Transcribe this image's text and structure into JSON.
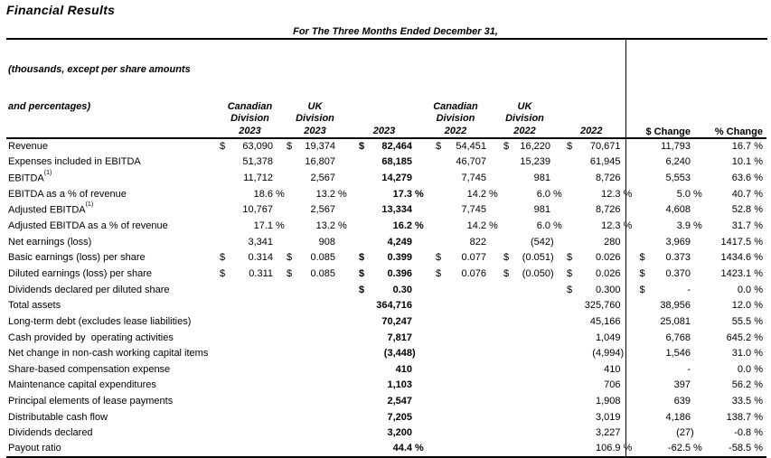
{
  "title": "Financial Results",
  "table": {
    "period_header": "For The Three Months Ended December 31,",
    "row_label_header": [
      "(thousands, except per share amounts",
      "and percentages)"
    ],
    "column_groups": [
      {
        "line1": "Canadian",
        "line2": "Division",
        "year": "2023"
      },
      {
        "line1": "UK",
        "line2": "Division",
        "year": "2023"
      },
      {
        "line1": "",
        "line2": "",
        "year": "2023"
      },
      {
        "line1": "Canadian",
        "line2": "Division",
        "year": "2022"
      },
      {
        "line1": "UK",
        "line2": "Division",
        "year": "2022"
      },
      {
        "line1": "",
        "line2": "",
        "year": "2022"
      }
    ],
    "change_headers": {
      "dollar": "$ Change",
      "percent": "% Change"
    },
    "rows": [
      {
        "label": "Revenue",
        "cells": [
          [
            "$",
            "63,090"
          ],
          [
            "$",
            "19,374"
          ],
          [
            "$",
            "82,464"
          ],
          [
            "$",
            "54,451"
          ],
          [
            "$",
            "16,220"
          ],
          [
            "$",
            "70,671"
          ],
          [
            "",
            "11,793"
          ]
        ],
        "pct": "16.7 %"
      },
      {
        "label": "Expenses included in EBITDA",
        "cells": [
          [
            "",
            "51,378"
          ],
          [
            "",
            "16,807"
          ],
          [
            "",
            "68,185"
          ],
          [
            "",
            "46,707"
          ],
          [
            "",
            "15,239"
          ],
          [
            "",
            "61,945"
          ],
          [
            "",
            "6,240"
          ]
        ],
        "pct": "10.1 %"
      },
      {
        "label": "EBITDA",
        "sup": "(1)",
        "cells": [
          [
            "",
            "11,712"
          ],
          [
            "",
            "2,567"
          ],
          [
            "",
            "14,279"
          ],
          [
            "",
            "7,745"
          ],
          [
            "",
            "981"
          ],
          [
            "",
            "8,726"
          ],
          [
            "",
            "5,553"
          ]
        ],
        "pct": "63.6 %"
      },
      {
        "label": "EBITDA as a % of revenue",
        "cells": [
          [
            "",
            "18.6 %"
          ],
          [
            "",
            "13.2 %"
          ],
          [
            "",
            "17.3 %"
          ],
          [
            "",
            "14.2 %"
          ],
          [
            "",
            "6.0 %"
          ],
          [
            "",
            "12.3 %"
          ],
          [
            "",
            "5.0 %"
          ]
        ],
        "pct": "40.7 %"
      },
      {
        "label": "Adjusted EBITDA",
        "sup": "(1)",
        "cells": [
          [
            "",
            "10,767"
          ],
          [
            "",
            "2,567"
          ],
          [
            "",
            "13,334"
          ],
          [
            "",
            "7,745"
          ],
          [
            "",
            "981"
          ],
          [
            "",
            "8,726"
          ],
          [
            "",
            "4,608"
          ]
        ],
        "pct": "52.8 %"
      },
      {
        "label": "Adjusted EBITDA as a % of revenue",
        "cells": [
          [
            "",
            "17.1 %"
          ],
          [
            "",
            "13.2 %"
          ],
          [
            "",
            "16.2 %"
          ],
          [
            "",
            "14.2 %"
          ],
          [
            "",
            "6.0 %"
          ],
          [
            "",
            "12.3 %"
          ],
          [
            "",
            "3.9 %"
          ]
        ],
        "pct": "31.7 %"
      },
      {
        "label": "Net earnings (loss)",
        "cells": [
          [
            "",
            "3,341"
          ],
          [
            "",
            "908"
          ],
          [
            "",
            "4,249"
          ],
          [
            "",
            "822"
          ],
          [
            "",
            "(542)"
          ],
          [
            "",
            "280"
          ],
          [
            "",
            "3,969"
          ]
        ],
        "pct": "1417.5 %"
      },
      {
        "label": "Basic earnings (loss) per share",
        "cells": [
          [
            "$",
            "0.314"
          ],
          [
            "$",
            "0.085"
          ],
          [
            "$",
            "0.399"
          ],
          [
            "$",
            "0.077"
          ],
          [
            "$",
            "(0.051)"
          ],
          [
            "$",
            "0.026"
          ],
          [
            "$",
            "0.373"
          ]
        ],
        "pct": "1434.6 %"
      },
      {
        "label": "Diluted earnings (loss) per share",
        "cells": [
          [
            "$",
            "0.311"
          ],
          [
            "$",
            "0.085"
          ],
          [
            "$",
            "0.396"
          ],
          [
            "$",
            "0.076"
          ],
          [
            "$",
            "(0.050)"
          ],
          [
            "$",
            "0.026"
          ],
          [
            "$",
            "0.370"
          ]
        ],
        "pct": "1423.1 %"
      },
      {
        "label": "Dividends declared per diluted share",
        "cells": [
          [
            "",
            ""
          ],
          [
            "",
            ""
          ],
          [
            "$",
            "0.30"
          ],
          [
            "",
            ""
          ],
          [
            "",
            ""
          ],
          [
            "$",
            "0.300"
          ],
          [
            "$",
            "-"
          ]
        ],
        "pct": "0.0 %"
      },
      {
        "label": "Total assets",
        "cells": [
          [
            "",
            ""
          ],
          [
            "",
            ""
          ],
          [
            "",
            "364,716"
          ],
          [
            "",
            ""
          ],
          [
            "",
            ""
          ],
          [
            "",
            "325,760"
          ],
          [
            "",
            "38,956"
          ]
        ],
        "pct": "12.0 %"
      },
      {
        "label": "Long-term debt (excludes lease liabilities)",
        "cells": [
          [
            "",
            ""
          ],
          [
            "",
            ""
          ],
          [
            "",
            "70,247"
          ],
          [
            "",
            ""
          ],
          [
            "",
            ""
          ],
          [
            "",
            "45,166"
          ],
          [
            "",
            "25,081"
          ]
        ],
        "pct": "55.5 %"
      },
      {
        "label": "Cash provided by  operating activities",
        "cells": [
          [
            "",
            ""
          ],
          [
            "",
            ""
          ],
          [
            "",
            "7,817"
          ],
          [
            "",
            ""
          ],
          [
            "",
            ""
          ],
          [
            "",
            "1,049"
          ],
          [
            "",
            "6,768"
          ]
        ],
        "pct": "645.2 %"
      },
      {
        "label": "Net change in non-cash working capital items",
        "cells": [
          [
            "",
            ""
          ],
          [
            "",
            ""
          ],
          [
            "",
            "(3,448)"
          ],
          [
            "",
            ""
          ],
          [
            "",
            ""
          ],
          [
            "",
            "(4,994)"
          ],
          [
            "",
            "1,546"
          ]
        ],
        "pct": "31.0 %"
      },
      {
        "label": "Share-based compensation expense",
        "cells": [
          [
            "",
            ""
          ],
          [
            "",
            ""
          ],
          [
            "",
            "410"
          ],
          [
            "",
            ""
          ],
          [
            "",
            ""
          ],
          [
            "",
            "410"
          ],
          [
            "",
            "-"
          ]
        ],
        "pct": "0.0 %"
      },
      {
        "label": "Maintenance capital expenditures",
        "cells": [
          [
            "",
            ""
          ],
          [
            "",
            ""
          ],
          [
            "",
            "1,103"
          ],
          [
            "",
            ""
          ],
          [
            "",
            ""
          ],
          [
            "",
            "706"
          ],
          [
            "",
            "397"
          ]
        ],
        "pct": "56.2 %"
      },
      {
        "label": "Principal elements of lease payments",
        "cells": [
          [
            "",
            ""
          ],
          [
            "",
            ""
          ],
          [
            "",
            "2,547"
          ],
          [
            "",
            ""
          ],
          [
            "",
            ""
          ],
          [
            "",
            "1,908"
          ],
          [
            "",
            "639"
          ]
        ],
        "pct": "33.5 %"
      },
      {
        "label": "Distributable cash flow",
        "cells": [
          [
            "",
            ""
          ],
          [
            "",
            ""
          ],
          [
            "",
            "7,205"
          ],
          [
            "",
            ""
          ],
          [
            "",
            ""
          ],
          [
            "",
            "3,019"
          ],
          [
            "",
            "4,186"
          ]
        ],
        "pct": "138.7 %"
      },
      {
        "label": "Dividends declared",
        "cells": [
          [
            "",
            ""
          ],
          [
            "",
            ""
          ],
          [
            "",
            "3,200"
          ],
          [
            "",
            ""
          ],
          [
            "",
            ""
          ],
          [
            "",
            "3,227"
          ],
          [
            "",
            "(27)"
          ]
        ],
        "pct": "-0.8 %"
      },
      {
        "label": "Payout ratio",
        "cells": [
          [
            "",
            ""
          ],
          [
            "",
            ""
          ],
          [
            "",
            "44.4 %"
          ],
          [
            "",
            ""
          ],
          [
            "",
            ""
          ],
          [
            "",
            "106.9 %"
          ],
          [
            "",
            "-62.5 %"
          ]
        ],
        "pct": "-58.5 %"
      }
    ]
  }
}
